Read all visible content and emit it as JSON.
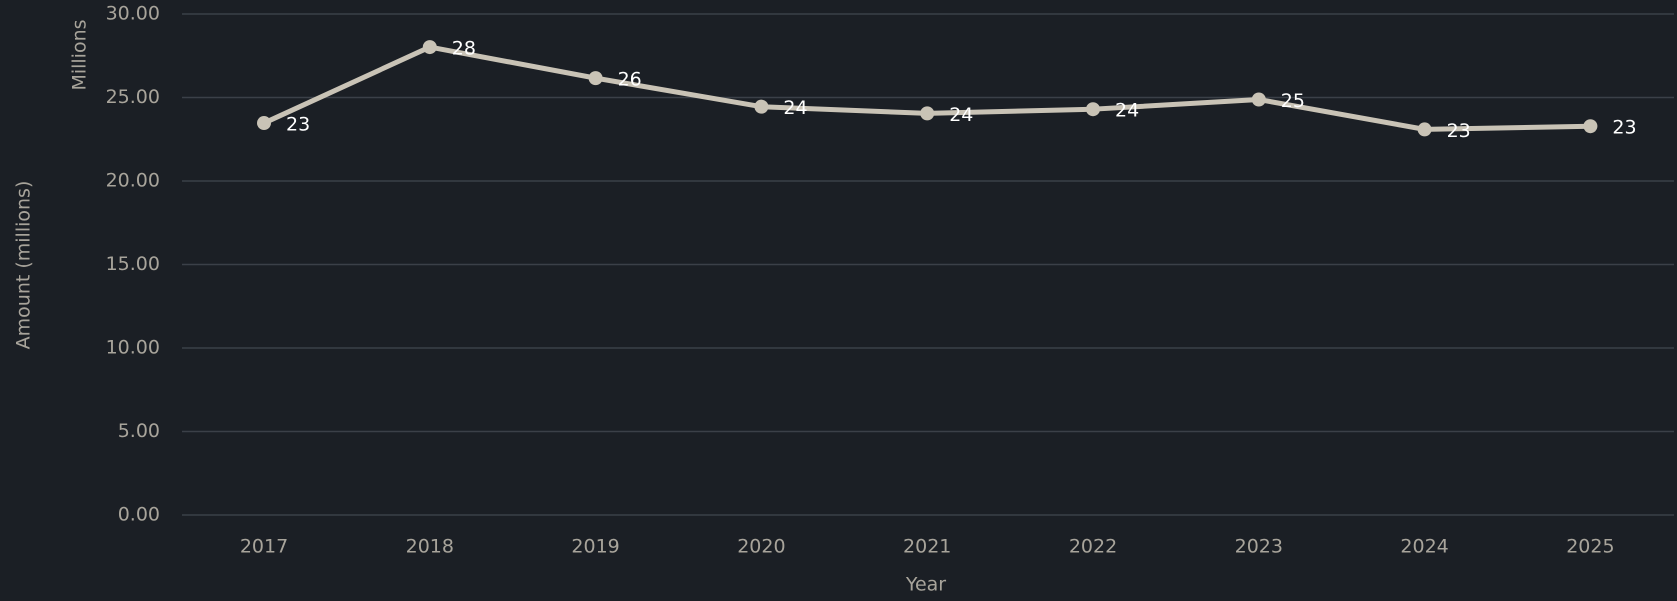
{
  "chart_data": {
    "type": "line",
    "y_label": "Amount (millions)",
    "y_unit_label": "Millions",
    "x_label": "Year",
    "categories": [
      "2017",
      "2018",
      "2019",
      "2020",
      "2021",
      "2022",
      "2023",
      "2024",
      "2025"
    ],
    "series": [
      {
        "color": "#c9c3b6",
        "values": [
          23.47,
          28.02,
          26.16,
          24.45,
          24.05,
          24.3,
          24.88,
          23.09,
          23.28
        ],
        "value_labels": [
          "23",
          "28",
          "26",
          "24",
          "24",
          "24",
          "25",
          "23",
          "23"
        ]
      }
    ],
    "ylim": [
      0,
      30
    ],
    "yticks": [
      {
        "value": 0,
        "label": "0.00"
      },
      {
        "value": 5,
        "label": "5.00"
      },
      {
        "value": 10,
        "label": "10.00"
      },
      {
        "value": 15,
        "label": "15.00"
      },
      {
        "value": 20,
        "label": "20.00"
      },
      {
        "value": 25,
        "label": "25.00"
      },
      {
        "value": 30,
        "label": "30.00"
      }
    ],
    "grid": true
  }
}
